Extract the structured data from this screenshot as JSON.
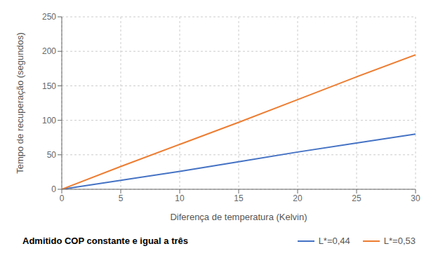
{
  "chart_data": {
    "type": "line",
    "x": [
      0,
      5,
      10,
      15,
      20,
      25,
      30
    ],
    "series": [
      {
        "name": "L*=0,44",
        "color": "#4472C4",
        "values": [
          0,
          13,
          26,
          40,
          54,
          67,
          80
        ]
      },
      {
        "name": "L*=0,53",
        "color": "#ED7D31",
        "values": [
          0,
          33,
          65,
          97,
          130,
          163,
          195
        ]
      }
    ],
    "xlabel": "Diferença de temperatura (Kelvin)",
    "ylabel": "Tempo de recuperação (segundos)",
    "xlim": [
      0,
      30
    ],
    "ylim": [
      0,
      250
    ],
    "xticks": [
      0,
      5,
      10,
      15,
      20,
      25,
      30
    ],
    "yticks": [
      0,
      50,
      100,
      150,
      200,
      250
    ],
    "grid": true,
    "legend": "bottom",
    "annotations": [
      "Admitido COP constante e igual a três"
    ]
  }
}
